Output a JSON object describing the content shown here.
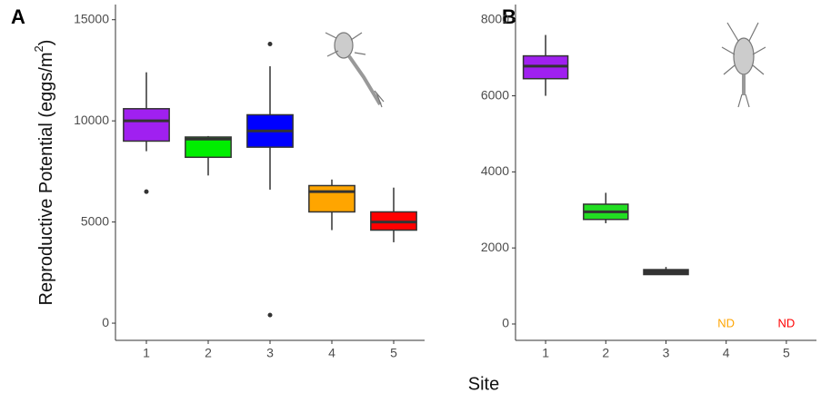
{
  "chart_data": [
    {
      "type": "box",
      "panel_label": "A",
      "ylabel": [
        "Reproductive Potential  (eggs/m",
        "2",
        ")"
      ],
      "xlabel": "Site",
      "categories": [
        "1",
        "2",
        "3",
        "4",
        "5"
      ],
      "colors": [
        "#a020f0",
        "#00ee00",
        "#0000ff",
        "#ffa500",
        "#ff0000"
      ],
      "boxes": [
        {
          "whislo": 8500,
          "q1": 9000,
          "med": 10000,
          "q3": 10600,
          "whishi": 12400,
          "fliers": [
            6500
          ]
        },
        {
          "whislo": 7300,
          "q1": 8200,
          "med": 9100,
          "q3": 9200,
          "whishi": 9250,
          "fliers": []
        },
        {
          "whislo": 6600,
          "q1": 8700,
          "med": 9500,
          "q3": 10300,
          "whishi": 12700,
          "fliers": [
            13800,
            400
          ]
        },
        {
          "whislo": 4600,
          "q1": 5500,
          "med": 6500,
          "q3": 6800,
          "whishi": 7100,
          "fliers": []
        },
        {
          "whislo": 4000,
          "q1": 4600,
          "med": 5000,
          "q3": 5500,
          "whishi": 6700,
          "fliers": []
        }
      ],
      "ylim": [
        -850,
        15750
      ],
      "yticks": [
        0,
        5000,
        10000,
        15000
      ],
      "grid": false
    },
    {
      "type": "box",
      "panel_label": "B",
      "categories": [
        "1",
        "2",
        "3",
        "4",
        "5"
      ],
      "colors": [
        "#a020f0",
        "#22dd22",
        "#333333",
        "#ffa500",
        "#ff0000"
      ],
      "boxes": [
        {
          "whislo": 6000,
          "q1": 6450,
          "med": 6780,
          "q3": 7050,
          "whishi": 7600,
          "fliers": []
        },
        {
          "whislo": 2650,
          "q1": 2750,
          "med": 2950,
          "q3": 3150,
          "whishi": 3450,
          "fliers": []
        },
        {
          "whislo": 1300,
          "q1": 1300,
          "med": 1400,
          "q3": 1430,
          "whishi": 1500,
          "fliers": []
        },
        null,
        null
      ],
      "value_labels": [
        null,
        null,
        null,
        "ND",
        "ND"
      ],
      "ylim": [
        -430,
        8400
      ],
      "yticks": [
        0,
        2000,
        4000,
        6000,
        8000
      ],
      "grid": false
    }
  ]
}
